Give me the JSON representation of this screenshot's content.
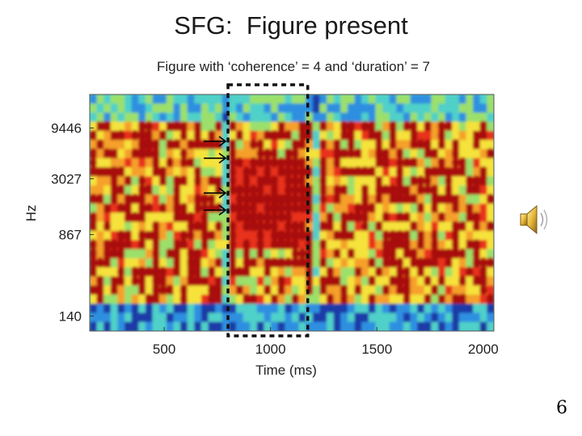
{
  "slide": {
    "title": "SFG:  Figure present",
    "page_number": "6"
  },
  "icons": {
    "speaker": "speaker-icon",
    "arrow": "right-arrow-icon"
  },
  "chart_data": {
    "type": "heatmap",
    "title": "Figure with ‘coherence’ = 4 and ‘duration’ = 7",
    "xlabel": "Time (ms)",
    "ylabel": "Hz",
    "xlim": [
      150,
      2050
    ],
    "ylim": [
      100,
      20000
    ],
    "y_scale": "log",
    "x_ticks": [
      500,
      1000,
      1500,
      2000
    ],
    "y_ticks": [
      140,
      867,
      3027,
      9446
    ],
    "colormap": [
      "#1a3aa8",
      "#2f8fe0",
      "#4fd0c8",
      "#9be06a",
      "#f5e23a",
      "#f5a02a",
      "#e8321e",
      "#a8080c"
    ],
    "figure_region": {
      "x_start": 800,
      "x_end": 1175,
      "coherence": 4,
      "duration": 7
    },
    "figure_arrows_hz": [
      7000,
      4800,
      2200,
      1500
    ]
  }
}
